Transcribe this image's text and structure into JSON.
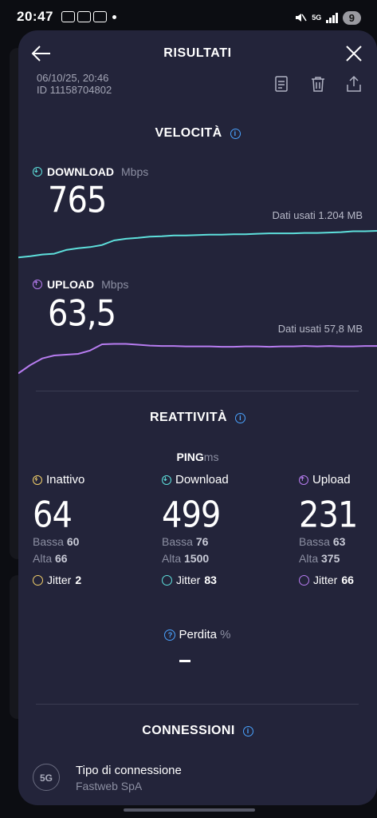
{
  "status_bar": {
    "time": "20:47",
    "network": "5G",
    "battery": "9"
  },
  "header": {
    "title": "RISULTATI",
    "date": "06/10/25, 20:46",
    "id": "ID 11158704802"
  },
  "speed": {
    "title": "VELOCITÀ",
    "download": {
      "label": "DOWNLOAD",
      "unit": "Mbps",
      "value": "765",
      "data_used": "Dati usati 1.204 MB",
      "color": "#5ee0dc",
      "trace": [
        0.11,
        0.14,
        0.18,
        0.2,
        0.29,
        0.33,
        0.36,
        0.41,
        0.52,
        0.56,
        0.58,
        0.61,
        0.62,
        0.64,
        0.64,
        0.65,
        0.66,
        0.66,
        0.67,
        0.67,
        0.68,
        0.69,
        0.69,
        0.69,
        0.7,
        0.7,
        0.71,
        0.72,
        0.74,
        0.74,
        0.75
      ]
    },
    "upload": {
      "label": "UPLOAD",
      "unit": "Mbps",
      "value": "63,5",
      "data_used": "Dati usati 57,8 MB",
      "color": "#b77cf0",
      "trace": [
        0.05,
        0.25,
        0.41,
        0.48,
        0.5,
        0.52,
        0.6,
        0.75,
        0.76,
        0.76,
        0.74,
        0.72,
        0.71,
        0.71,
        0.7,
        0.7,
        0.7,
        0.69,
        0.69,
        0.7,
        0.7,
        0.69,
        0.7,
        0.7,
        0.71,
        0.7,
        0.71,
        0.7,
        0.7,
        0.71,
        0.71
      ]
    }
  },
  "responsiveness": {
    "title": "REATTIVITÀ",
    "ping_label": "PING",
    "ping_unit": "ms",
    "low_label": "Bassa",
    "high_label": "Alta",
    "jitter_label": "Jitter",
    "columns": [
      {
        "label": "Inattivo",
        "value": "64",
        "low": "60",
        "high": "66",
        "jitter": "2",
        "color": "#f2cf6a"
      },
      {
        "label": "Download",
        "value": "499",
        "low": "76",
        "high": "1500",
        "jitter": "83",
        "color": "#5ee0dc"
      },
      {
        "label": "Upload",
        "value": "231",
        "low": "63",
        "high": "375",
        "jitter": "66",
        "color": "#b77cf0"
      }
    ],
    "loss_label": "Perdita",
    "loss_unit": "%"
  },
  "connections": {
    "title": "CONNESSIONI",
    "icon_text": "5G",
    "type_label": "Tipo di connessione",
    "provider": "Fastweb SpA"
  }
}
